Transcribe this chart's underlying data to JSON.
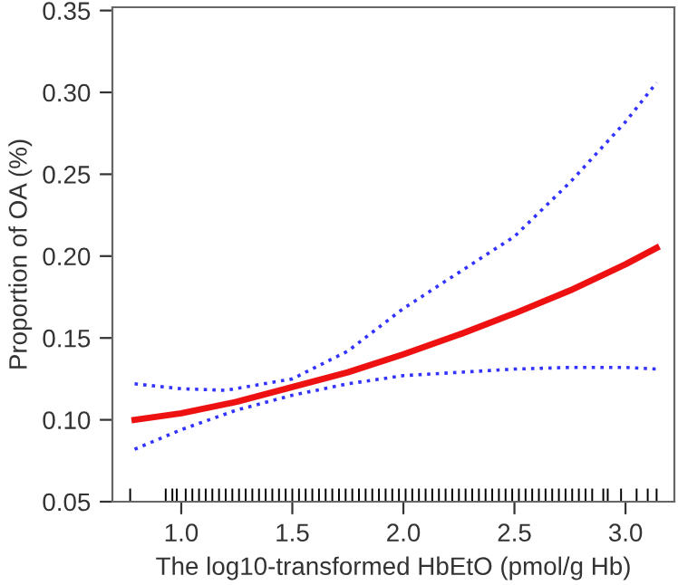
{
  "chart_data": {
    "type": "line",
    "xlabel": "The log10-transformed HbEtO (pmol/g Hb)",
    "ylabel": "Proportion of OA (%)",
    "xlim": [
      0.69,
      3.22
    ],
    "ylim": [
      0.05,
      0.352
    ],
    "xticks": [
      {
        "value": 1.0,
        "label": "1.0"
      },
      {
        "value": 1.5,
        "label": "1.5"
      },
      {
        "value": 2.0,
        "label": "2.0"
      },
      {
        "value": 2.5,
        "label": "2.5"
      },
      {
        "value": 3.0,
        "label": "3.0"
      }
    ],
    "yticks": [
      {
        "value": 0.05,
        "label": "0.05"
      },
      {
        "value": 0.1,
        "label": "0.10"
      },
      {
        "value": 0.15,
        "label": "0.15"
      },
      {
        "value": 0.2,
        "label": "0.20"
      },
      {
        "value": 0.25,
        "label": "0.25"
      },
      {
        "value": 0.3,
        "label": "0.30"
      },
      {
        "value": 0.35,
        "label": "0.35"
      }
    ],
    "grid": false,
    "series": [
      {
        "type": "line",
        "line_style": "dotted",
        "color": "#3333ff",
        "x": [
          0.79,
          1.0,
          1.2,
          1.5,
          1.75,
          2.0,
          2.25,
          2.5,
          2.75,
          3.0,
          3.14
        ],
        "values": [
          0.122,
          0.119,
          0.118,
          0.125,
          0.142,
          0.168,
          0.19,
          0.212,
          0.245,
          0.282,
          0.306
        ]
      },
      {
        "type": "line",
        "line_style": "dotted",
        "color": "#3333ff",
        "x": [
          0.79,
          1.0,
          1.25,
          1.5,
          1.75,
          2.0,
          2.25,
          2.5,
          2.75,
          3.0,
          3.14
        ],
        "values": [
          0.082,
          0.094,
          0.106,
          0.115,
          0.122,
          0.127,
          0.129,
          0.131,
          0.132,
          0.132,
          0.131
        ]
      },
      {
        "line_style": "solid",
        "color": "#ee1111",
        "x": [
          0.79,
          1.0,
          1.25,
          1.5,
          1.75,
          2.0,
          2.25,
          2.5,
          2.75,
          3.0,
          3.14
        ],
        "values": [
          0.1,
          0.104,
          0.111,
          0.12,
          0.129,
          0.14,
          0.152,
          0.165,
          0.179,
          0.195,
          0.205
        ]
      },
      {
        "type": "bar",
        "base": [
          0.05,
          0.05,
          0.05,
          0.05,
          0.05,
          0.05,
          0.05,
          0.05,
          0.05,
          0.05,
          0.05,
          0.05,
          0.05,
          0.05,
          0.05,
          0.05,
          0.05,
          0.05,
          0.05,
          0.05,
          0.05,
          0.05,
          0.05,
          0.05,
          0.05,
          0.05,
          0.05,
          0.05,
          0.05,
          0.05,
          0.05,
          0.05,
          0.05,
          0.05,
          0.05,
          0.05,
          0.05,
          0.05,
          0.05,
          0.05,
          0.05,
          0.05,
          0.05,
          0.05,
          0.05,
          0.05,
          0.05,
          0.05,
          0.05,
          0.05,
          0.05,
          0.05,
          0.05,
          0.05,
          0.05,
          0.05,
          0.05,
          0.05,
          0.05,
          0.05,
          0.05,
          0.05,
          0.05,
          0.05,
          0.05,
          0.05,
          0.05,
          0.05,
          0.05,
          0.05,
          0.05,
          0.05
        ],
        "color": "#000000",
        "x": [
          0.77,
          0.93,
          0.96,
          0.98,
          1.02,
          1.05,
          1.08,
          1.11,
          1.14,
          1.17,
          1.2,
          1.23,
          1.26,
          1.29,
          1.32,
          1.35,
          1.38,
          1.41,
          1.44,
          1.47,
          1.5,
          1.53,
          1.56,
          1.59,
          1.62,
          1.65,
          1.68,
          1.71,
          1.74,
          1.77,
          1.8,
          1.83,
          1.86,
          1.89,
          1.92,
          1.95,
          1.98,
          2.01,
          2.04,
          2.07,
          2.1,
          2.13,
          2.16,
          2.19,
          2.22,
          2.25,
          2.28,
          2.31,
          2.34,
          2.37,
          2.4,
          2.43,
          2.46,
          2.49,
          2.52,
          2.55,
          2.58,
          2.61,
          2.64,
          2.67,
          2.7,
          2.73,
          2.76,
          2.79,
          2.82,
          2.85,
          2.9,
          2.92,
          2.98,
          3.05,
          3.1,
          3.14
        ],
        "values": [
          0.008,
          0.008,
          0.008,
          0.008,
          0.008,
          0.008,
          0.008,
          0.008,
          0.008,
          0.008,
          0.008,
          0.008,
          0.008,
          0.008,
          0.008,
          0.008,
          0.008,
          0.008,
          0.008,
          0.008,
          0.008,
          0.008,
          0.008,
          0.008,
          0.008,
          0.008,
          0.008,
          0.008,
          0.008,
          0.008,
          0.008,
          0.008,
          0.008,
          0.008,
          0.008,
          0.008,
          0.008,
          0.008,
          0.008,
          0.008,
          0.008,
          0.008,
          0.008,
          0.008,
          0.008,
          0.008,
          0.008,
          0.008,
          0.008,
          0.008,
          0.008,
          0.008,
          0.008,
          0.008,
          0.008,
          0.008,
          0.008,
          0.008,
          0.008,
          0.008,
          0.008,
          0.008,
          0.008,
          0.008,
          0.008,
          0.008,
          0.008,
          0.008,
          0.008,
          0.008,
          0.008,
          0.008
        ]
      }
    ]
  }
}
